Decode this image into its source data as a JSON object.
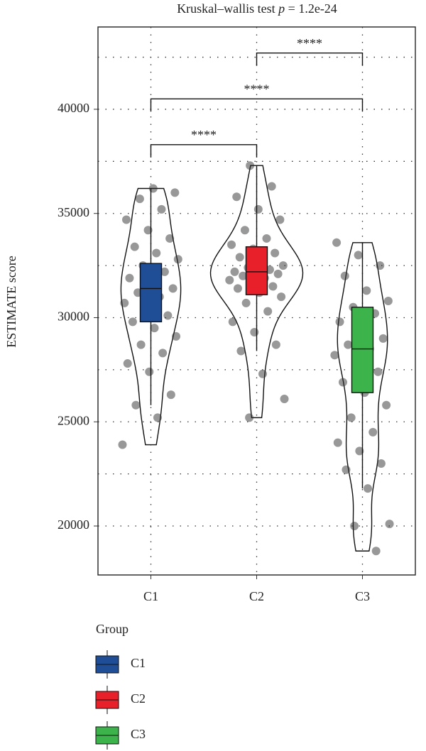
{
  "chart_data": {
    "type": "violin",
    "title": "Kruskal–wallis test",
    "title_stat": "p",
    "title_value": "= 1.2e-24",
    "ylabel": "ESTIMATE score",
    "legend_title": "Group",
    "ylim": [
      17650,
      43950
    ],
    "yticks": [
      20000,
      25000,
      30000,
      35000,
      40000
    ],
    "minor_yticks": [
      22500,
      27500,
      32500,
      37500,
      42500
    ],
    "grid": true,
    "series": [
      {
        "name": "C1",
        "color": "#1f4e96",
        "min": 25800,
        "q1": 29800,
        "median": 31400,
        "q3": 32600,
        "max": 36200,
        "points": [
          23900,
          25200,
          25800,
          26300,
          27400,
          27800,
          28300,
          28700,
          29100,
          29500,
          29800,
          30100,
          30400,
          30700,
          31000,
          31200,
          31400,
          31600,
          31900,
          32200,
          32500,
          32800,
          33100,
          33400,
          33800,
          34200,
          34700,
          35200,
          35700,
          36000,
          36200
        ]
      },
      {
        "name": "C2",
        "color": "#e8202a",
        "min": 28400,
        "q1": 31100,
        "median": 32200,
        "q3": 33400,
        "max": 37300,
        "points": [
          25200,
          26100,
          27300,
          28400,
          28700,
          29300,
          29800,
          30300,
          30700,
          31000,
          31200,
          31400,
          31500,
          31600,
          31800,
          31900,
          32000,
          32100,
          32200,
          32200,
          32300,
          32400,
          32500,
          32700,
          32900,
          33100,
          33300,
          33500,
          33800,
          34200,
          34700,
          35200,
          35800,
          36300,
          37300
        ]
      },
      {
        "name": "C3",
        "color": "#3cb44b",
        "min": 21800,
        "q1": 26400,
        "median": 28500,
        "q3": 30500,
        "max": 33600,
        "points": [
          18800,
          20000,
          20100,
          21800,
          22700,
          23000,
          23600,
          24000,
          24500,
          25200,
          25800,
          26400,
          26900,
          27400,
          27800,
          28200,
          28500,
          28700,
          29000,
          29400,
          29800,
          30200,
          30500,
          30800,
          31300,
          32000,
          32500,
          33000,
          33600
        ]
      }
    ],
    "comparisons": [
      {
        "from": 0,
        "to": 1,
        "y": 38300,
        "label": "****"
      },
      {
        "from": 0,
        "to": 2,
        "y": 40500,
        "label": "****"
      },
      {
        "from": 1,
        "to": 2,
        "y": 42700,
        "label": "****"
      }
    ]
  }
}
